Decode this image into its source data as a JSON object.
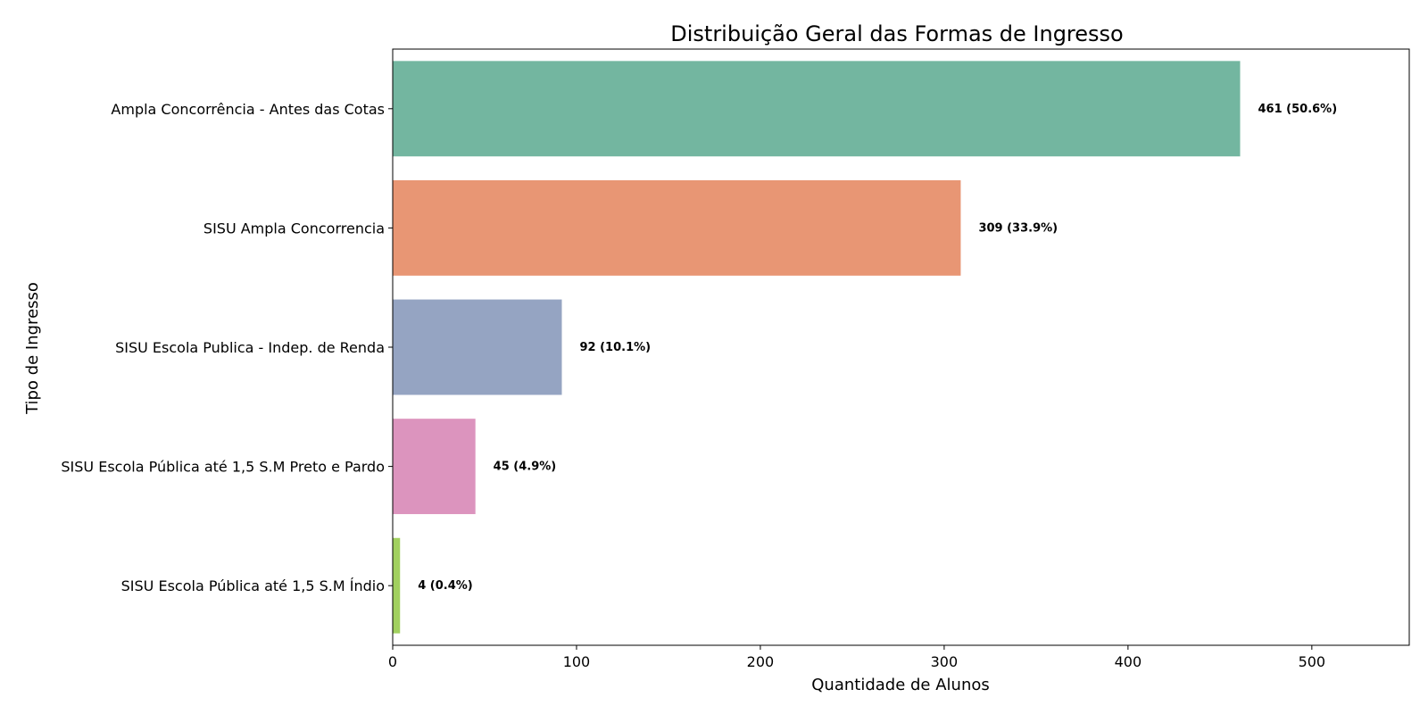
{
  "chart_data": {
    "type": "bar",
    "orientation": "horizontal",
    "title": "Distribuição Geral das Formas de Ingresso",
    "xlabel": "Quantidade de Alunos",
    "ylabel": "Tipo de Ingresso",
    "categories": [
      "Ampla Concorrência - Antes das Cotas",
      "SISU Ampla Concorrencia",
      "SISU Escola Publica - Indep. de Renda",
      "SISU Escola Pública até 1,5 S.M Preto e Pardo",
      "SISU Escola Pública até 1,5 S.M Índio"
    ],
    "values": [
      461,
      309,
      92,
      45,
      4
    ],
    "labels": [
      "461 (50.6%)",
      "309 (33.9%)",
      "92 (10.1%)",
      "45 (4.9%)",
      "4 (0.4%)"
    ],
    "colors": [
      "#73b6a0",
      "#e89674",
      "#95a4c2",
      "#dc94be",
      "#a1d05f"
    ],
    "xlim": [
      0,
      553
    ],
    "xticks": [
      0,
      100,
      200,
      300,
      400,
      500
    ],
    "grid": false,
    "legend": "none"
  }
}
